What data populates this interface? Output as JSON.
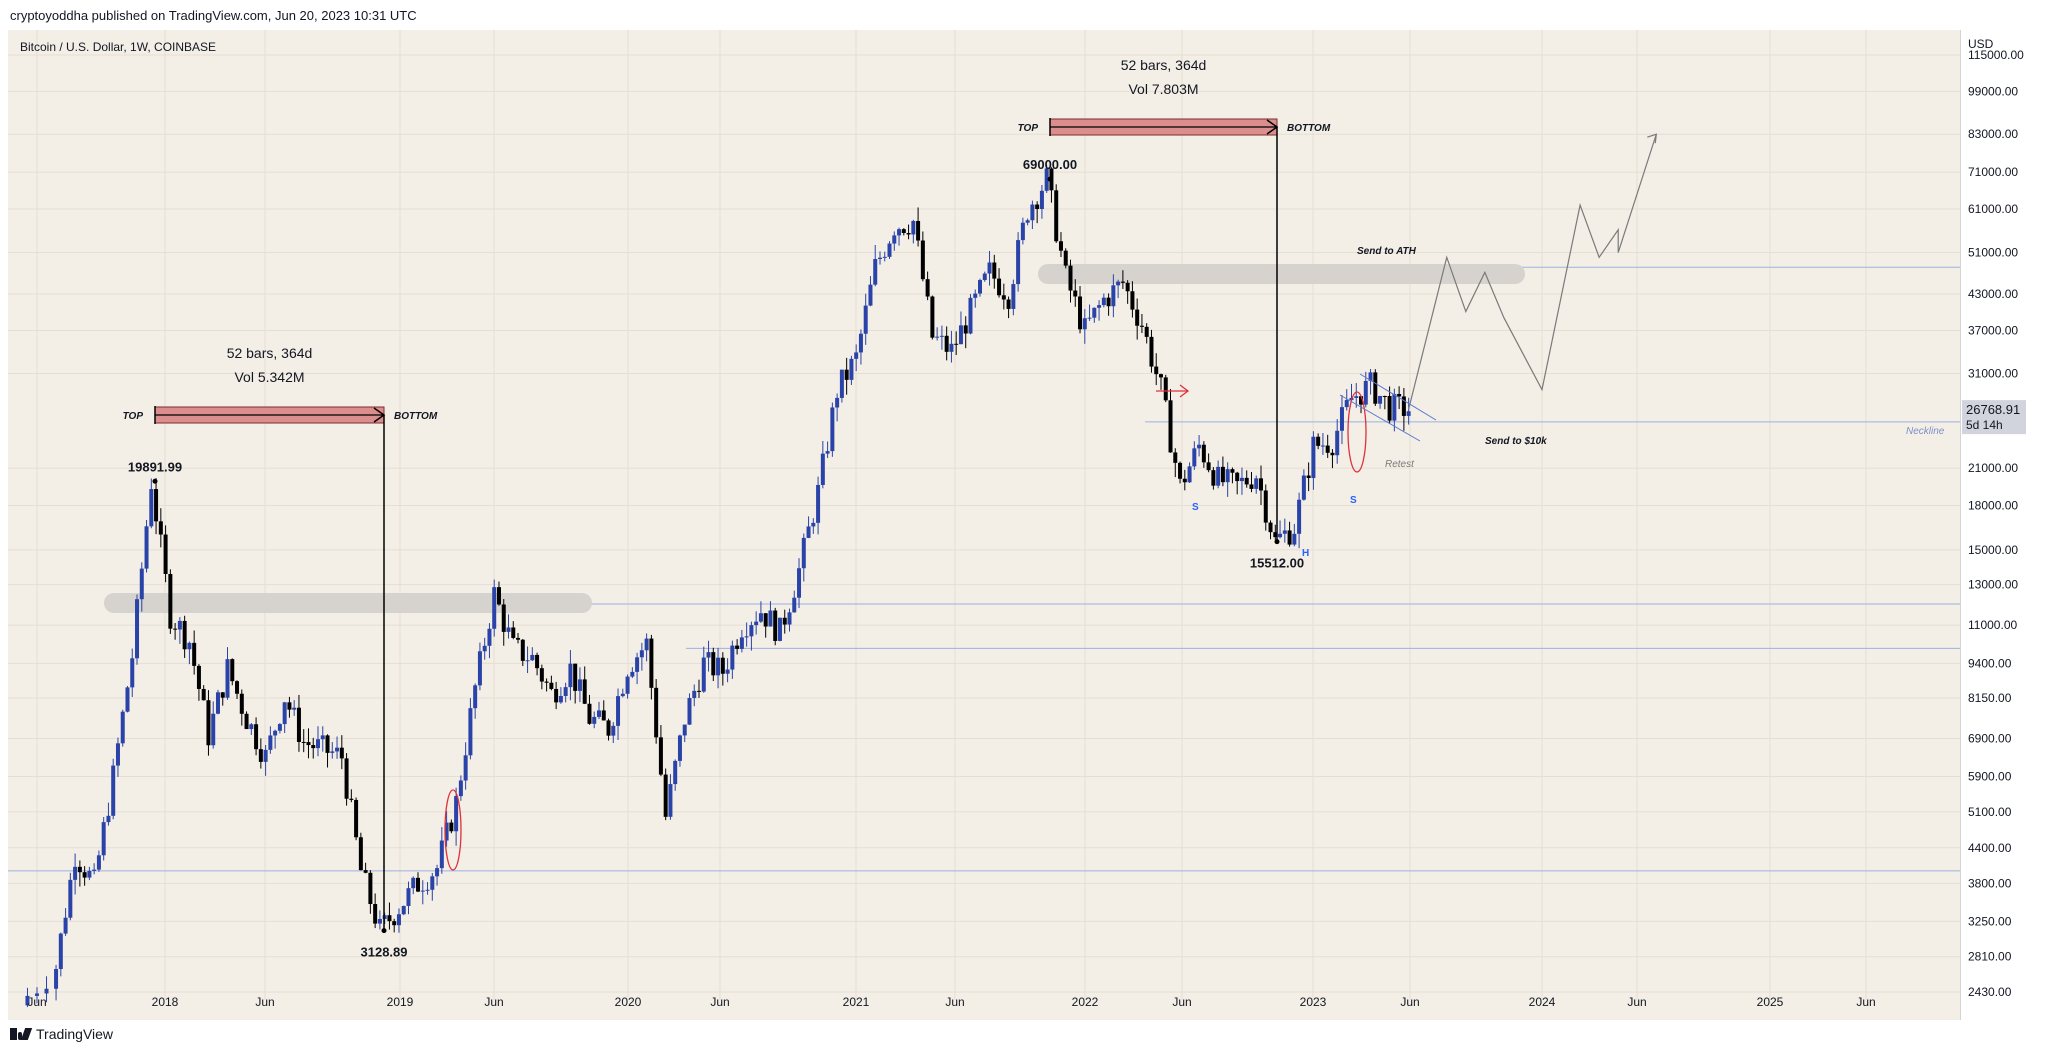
{
  "header": {
    "publish_line": "cryptoyoddha published on TradingView.com, Jun 20, 2023 10:31 UTC"
  },
  "symbol_title": "Bitcoin / U.S. Dollar, 1W, COINBASE",
  "price_axis": {
    "currency": "USD",
    "ticks": [
      "115000.00",
      "99000.00",
      "83000.00",
      "71000.00",
      "61000.00",
      "51000.00",
      "43000.00",
      "37000.00",
      "31000.00",
      "21000.00",
      "18000.00",
      "15000.00",
      "13000.00",
      "11000.00",
      "9400.00",
      "8150.00",
      "6900.00",
      "5900.00",
      "5100.00",
      "4400.00",
      "3800.00",
      "3250.00",
      "2810.00",
      "2430.00"
    ],
    "last_price": "26768.91",
    "countdown": "5d 14h"
  },
  "time_axis": {
    "ticks": [
      "Jun",
      "2018",
      "Jun",
      "2019",
      "Jun",
      "2020",
      "Jun",
      "2021",
      "Jun",
      "2022",
      "Jun",
      "2023",
      "Jun",
      "2024",
      "Jun",
      "2025",
      "Jun"
    ]
  },
  "annotations": {
    "cycle1": {
      "bars": "52 bars, 364d",
      "vol": "Vol 5.342M",
      "top": "TOP",
      "bottom": "BOTTOM",
      "high": "19891.99",
      "low": "3128.89"
    },
    "cycle2": {
      "bars": "52 bars, 364d",
      "vol": "Vol 7.803M",
      "top": "TOP",
      "bottom": "BOTTOM",
      "high": "69000.00",
      "low": "15512.00"
    },
    "send_ath": "Send to ATH",
    "send_10k": "Send to $10k",
    "neckline": "Neckline",
    "retest": "Retest",
    "s_left": "S",
    "h": "H",
    "s_right": "S"
  },
  "footer": {
    "brand": "TradingView"
  },
  "colors": {
    "bull": "#2a43a8",
    "bear": "#000000",
    "bg": "#f3eee6",
    "range_fill": "#dc8e8e",
    "zone": "#d6d3ce",
    "hline": "#9fb0e0",
    "ellipse": "#e0303a"
  },
  "chart_data": {
    "type": "candlestick",
    "title": "Bitcoin / U.S. Dollar, 1W, COINBASE",
    "scale": "log",
    "ylim": [
      2430,
      115000
    ],
    "x_range": [
      "2017-05",
      "2025-10"
    ],
    "key_points": [
      {
        "date": "2017-05",
        "close": 2300
      },
      {
        "date": "2017-07",
        "close": 2700
      },
      {
        "date": "2017-08",
        "close": 4300
      },
      {
        "date": "2017-09",
        "close": 3800
      },
      {
        "date": "2017-10",
        "close": 5900
      },
      {
        "date": "2017-11",
        "close": 9700
      },
      {
        "date": "2017-12",
        "close": 19891.99
      },
      {
        "date": "2018-01",
        "close": 11500
      },
      {
        "date": "2018-02",
        "close": 10300
      },
      {
        "date": "2018-03",
        "close": 7000
      },
      {
        "date": "2018-04",
        "close": 9200
      },
      {
        "date": "2018-05",
        "close": 7500
      },
      {
        "date": "2018-06",
        "close": 6400
      },
      {
        "date": "2018-07",
        "close": 8200
      },
      {
        "date": "2018-08",
        "close": 6800
      },
      {
        "date": "2018-09",
        "close": 6600
      },
      {
        "date": "2018-10",
        "close": 6400
      },
      {
        "date": "2018-11",
        "close": 4000
      },
      {
        "date": "2018-12",
        "close": 3128.89
      },
      {
        "date": "2019-01",
        "close": 3450
      },
      {
        "date": "2019-02",
        "close": 3800
      },
      {
        "date": "2019-03",
        "close": 4050
      },
      {
        "date": "2019-04",
        "close": 5300
      },
      {
        "date": "2019-05",
        "close": 8500
      },
      {
        "date": "2019-06",
        "close": 12500
      },
      {
        "date": "2019-07",
        "close": 10000
      },
      {
        "date": "2019-08",
        "close": 9600
      },
      {
        "date": "2019-09",
        "close": 8300
      },
      {
        "date": "2019-10",
        "close": 9200
      },
      {
        "date": "2019-11",
        "close": 7500
      },
      {
        "date": "2019-12",
        "close": 7200
      },
      {
        "date": "2020-01",
        "close": 9300
      },
      {
        "date": "2020-02",
        "close": 10200
      },
      {
        "date": "2020-03",
        "close": 5000
      },
      {
        "date": "2020-04",
        "close": 7500
      },
      {
        "date": "2020-05",
        "close": 9400
      },
      {
        "date": "2020-06",
        "close": 9100
      },
      {
        "date": "2020-07",
        "close": 11000
      },
      {
        "date": "2020-08",
        "close": 11700
      },
      {
        "date": "2020-09",
        "close": 10700
      },
      {
        "date": "2020-10",
        "close": 13800
      },
      {
        "date": "2020-11",
        "close": 19000
      },
      {
        "date": "2020-12",
        "close": 28900
      },
      {
        "date": "2021-01",
        "close": 33000
      },
      {
        "date": "2021-02",
        "close": 48000
      },
      {
        "date": "2021-03",
        "close": 57000
      },
      {
        "date": "2021-04",
        "close": 58000
      },
      {
        "date": "2021-05",
        "close": 36000
      },
      {
        "date": "2021-06",
        "close": 34000
      },
      {
        "date": "2021-07",
        "close": 40000
      },
      {
        "date": "2021-08",
        "close": 47000
      },
      {
        "date": "2021-09",
        "close": 43000
      },
      {
        "date": "2021-10",
        "close": 61000
      },
      {
        "date": "2021-11",
        "close": 69000
      },
      {
        "date": "2021-12",
        "close": 46000
      },
      {
        "date": "2022-01",
        "close": 37000
      },
      {
        "date": "2022-02",
        "close": 42000
      },
      {
        "date": "2022-03",
        "close": 45000
      },
      {
        "date": "2022-04",
        "close": 38000
      },
      {
        "date": "2022-05",
        "close": 29000
      },
      {
        "date": "2022-06",
        "close": 19500
      },
      {
        "date": "2022-07",
        "close": 23000
      },
      {
        "date": "2022-08",
        "close": 20000
      },
      {
        "date": "2022-09",
        "close": 19500
      },
      {
        "date": "2022-10",
        "close": 20500
      },
      {
        "date": "2022-11",
        "close": 15512
      },
      {
        "date": "2022-12",
        "close": 16500
      },
      {
        "date": "2023-01",
        "close": 23000
      },
      {
        "date": "2023-02",
        "close": 23500
      },
      {
        "date": "2023-03",
        "close": 28000
      },
      {
        "date": "2023-04",
        "close": 29500
      },
      {
        "date": "2023-05",
        "close": 27000
      },
      {
        "date": "2023-06",
        "close": 26768.91
      }
    ],
    "projection": [
      {
        "date": "2023-06",
        "value": 26768.91
      },
      {
        "date": "2023-08",
        "value": 50000
      },
      {
        "date": "2023-09",
        "value": 40000
      },
      {
        "date": "2023-10",
        "value": 47000
      },
      {
        "date": "2023-11",
        "value": 39000
      },
      {
        "date": "2024-01",
        "value": 29000
      },
      {
        "date": "2024-03",
        "value": 62000
      },
      {
        "date": "2024-04",
        "value": 50000
      },
      {
        "date": "2024-05",
        "value": 56000
      },
      {
        "date": "2024-05",
        "value": 51000
      },
      {
        "date": "2024-07",
        "value": 83000
      }
    ],
    "xlabel": "",
    "ylabel": "USD",
    "grid": true
  }
}
